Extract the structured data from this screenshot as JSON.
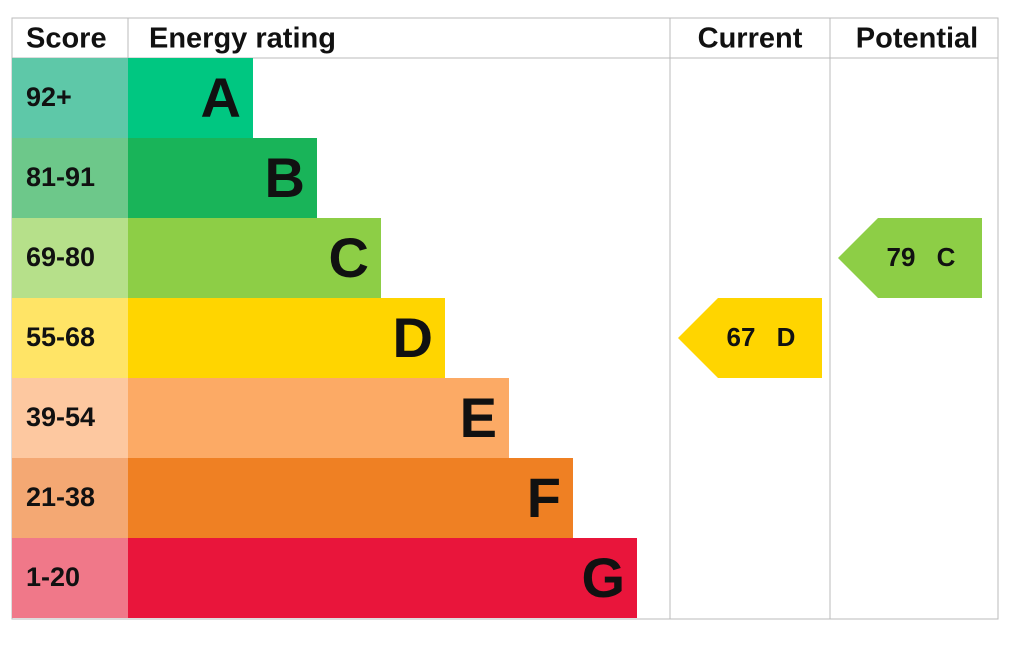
{
  "headers": {
    "score": "Score",
    "rating": "Energy rating",
    "current": "Current",
    "potential": "Potential"
  },
  "bands": [
    {
      "score": "92+",
      "letter": "A",
      "color": "#00c781",
      "score_color": "#5ec8a8"
    },
    {
      "score": "81-91",
      "letter": "B",
      "color": "#19b459",
      "score_color": "#6dc88a"
    },
    {
      "score": "69-80",
      "letter": "C",
      "color": "#8dce46",
      "score_color": "#b6e08a"
    },
    {
      "score": "55-68",
      "letter": "D",
      "color": "#ffd500",
      "score_color": "#ffe466"
    },
    {
      "score": "39-54",
      "letter": "E",
      "color": "#fcaa65",
      "score_color": "#fdc8a0"
    },
    {
      "score": "21-38",
      "letter": "F",
      "color": "#ef8023",
      "score_color": "#f4a873"
    },
    {
      "score": "1-20",
      "letter": "G",
      "color": "#e9153b",
      "score_color": "#f07889"
    }
  ],
  "current": {
    "value": 67,
    "letter": "D"
  },
  "potential": {
    "value": 79,
    "letter": "C"
  }
}
